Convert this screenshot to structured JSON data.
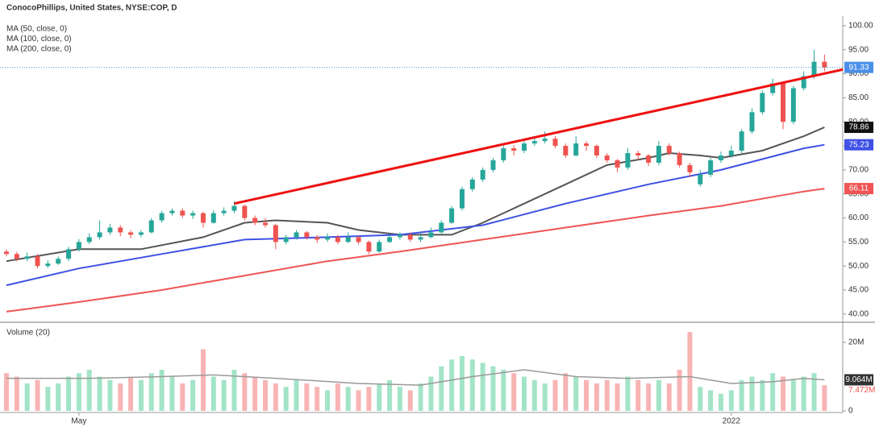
{
  "chart_data": [
    {
      "type": "candlestick",
      "title": "ConocoPhillips, United States, NYSE:COP, D",
      "open": [
        53,
        52.5,
        51.5,
        52,
        50,
        50.5,
        51.5,
        53.5,
        55,
        56,
        57,
        58,
        57,
        56.5,
        57,
        59.5,
        61,
        61.5,
        60.5,
        61,
        59,
        61,
        61.5,
        62.5,
        60,
        59,
        58.5,
        55,
        56,
        57,
        56,
        55.5,
        56,
        55,
        56,
        55,
        53,
        55,
        56,
        56.5,
        55.5,
        56,
        57,
        59,
        62,
        66,
        68,
        70,
        72,
        74.5,
        74,
        75.5,
        76,
        76.5,
        75,
        73,
        75.5,
        75,
        73,
        72,
        70.5,
        73.5,
        73,
        71.5,
        75,
        73.5,
        71,
        67,
        69,
        72,
        73,
        74,
        78,
        82,
        86,
        88,
        80,
        87,
        89.5,
        92.5
      ],
      "high": [
        53.5,
        53,
        52.8,
        52.5,
        51.2,
        52,
        54,
        55.6,
        56.8,
        59.5,
        58.8,
        58.5,
        57.5,
        57.5,
        60,
        61.5,
        62,
        62,
        61.5,
        61.3,
        61.6,
        62.2,
        63.5,
        62.8,
        60.5,
        60,
        58.8,
        56.5,
        57.5,
        57.3,
        56.5,
        56.8,
        56.5,
        57,
        56.3,
        55.3,
        55.5,
        56.5,
        57,
        57,
        56.8,
        58,
        59.5,
        62.5,
        66.5,
        68.5,
        70.5,
        72.5,
        75,
        75.2,
        76,
        76.8,
        78,
        77,
        75.5,
        77,
        76,
        75.3,
        73.5,
        72.3,
        74.5,
        74,
        73.3,
        76,
        75.5,
        73.8,
        71.5,
        70,
        72.5,
        73.8,
        75,
        78.5,
        82.8,
        86.5,
        89,
        88.3,
        87.5,
        90.5,
        95,
        94
      ],
      "low": [
        52,
        51,
        51,
        49.5,
        49.6,
        50.2,
        51,
        53,
        54.5,
        55.5,
        56.5,
        56.2,
        55.8,
        56,
        56.8,
        59,
        60.5,
        60,
        59.8,
        58,
        58.8,
        60.5,
        61,
        59.5,
        58.5,
        58,
        53.5,
        54.5,
        55.5,
        55.5,
        54.8,
        55,
        54.5,
        54.8,
        54.5,
        52.5,
        52.8,
        54.8,
        55.5,
        55,
        55,
        55.8,
        56.8,
        58.8,
        61.5,
        65.5,
        67.5,
        69.5,
        71.5,
        73,
        73.5,
        75,
        75.5,
        74.5,
        72.5,
        72.8,
        74,
        72.5,
        71.5,
        69.5,
        70,
        72,
        70.8,
        71,
        73,
        70.5,
        68.5,
        66.5,
        68.5,
        71.5,
        72.5,
        73.5,
        77.5,
        81.5,
        85.5,
        78.5,
        79.5,
        86.5,
        89,
        90.5
      ],
      "close": [
        52.5,
        51.5,
        52,
        50,
        50.5,
        51.5,
        53.5,
        55,
        56,
        57,
        58,
        57,
        56.5,
        57,
        59.5,
        61,
        61.5,
        60.5,
        61,
        59,
        61,
        61.5,
        62.5,
        60,
        59,
        58.5,
        55,
        56,
        57,
        56,
        55.5,
        56,
        55,
        56,
        55,
        53,
        55,
        56,
        56.5,
        55.5,
        56,
        57,
        59,
        62,
        66,
        68,
        70,
        72,
        74.5,
        74,
        75.5,
        76,
        76.5,
        75,
        73,
        75.5,
        75,
        73,
        72,
        70.5,
        73.5,
        73,
        71.5,
        75,
        73.5,
        71,
        69.5,
        69,
        72,
        73,
        74,
        78,
        82,
        86,
        88,
        80,
        87,
        89.5,
        92.5,
        91.33
      ],
      "up_color": "#26a69a",
      "down_color": "#ef5350",
      "last_price_line": true,
      "last_price_color": "#4a8fe7",
      "series": [
        {
          "name": "MA (50, close, 0)",
          "color": "#555555",
          "x": [
            0,
            7,
            13,
            19,
            23,
            26,
            31,
            34,
            38,
            43,
            46,
            50,
            54,
            58,
            62,
            64,
            67,
            69,
            73,
            77,
            79
          ],
          "values": [
            51,
            53.5,
            53.5,
            56,
            59,
            59.5,
            59,
            57.5,
            56.5,
            56.5,
            59,
            63,
            67,
            71,
            72.5,
            73.5,
            73,
            72.5,
            74,
            77,
            78.86
          ]
        },
        {
          "name": "MA (100, close, 0)",
          "color": "#3f51e6",
          "x": [
            0,
            7,
            15,
            23,
            31,
            38,
            46,
            54,
            62,
            69,
            77,
            79
          ],
          "values": [
            46,
            49.5,
            52.5,
            55.5,
            56,
            56.5,
            58.5,
            63,
            67,
            70,
            74.5,
            75.23
          ]
        },
        {
          "name": "MA (200, close, 0)",
          "color": "#f05454",
          "x": [
            0,
            7,
            15,
            23,
            31,
            38,
            46,
            54,
            62,
            69,
            77,
            79
          ],
          "values": [
            40.5,
            42.5,
            45,
            48,
            51,
            53,
            55.5,
            58,
            60.5,
            62.5,
            65.5,
            66.11
          ]
        }
      ],
      "trendline": {
        "color": "#ee1111",
        "x": [
          22,
          81
        ],
        "values": [
          63,
          91
        ]
      },
      "ylim": [
        38.3,
        102
      ],
      "yticks": [
        {
          "value": 40,
          "label": "40.00"
        },
        {
          "value": 45,
          "label": "45.00"
        },
        {
          "value": 50,
          "label": "50.00"
        },
        {
          "value": 55,
          "label": "55.00"
        },
        {
          "value": 60,
          "label": "60.00"
        },
        {
          "value": 65,
          "label": "65.00"
        },
        {
          "value": 70,
          "label": "70.00"
        },
        {
          "value": 75,
          "label": "75.00"
        },
        {
          "value": 80,
          "label": "80.00"
        },
        {
          "value": 85,
          "label": "85.00"
        },
        {
          "value": 90,
          "label": "90.00"
        },
        {
          "value": 95,
          "label": "95.00"
        },
        {
          "value": 100,
          "label": "100.00"
        }
      ]
    },
    {
      "type": "bar",
      "title": "Volume (20)",
      "categories": [
        null,
        null,
        null,
        null,
        null,
        null,
        null,
        "May",
        null,
        null,
        null,
        null,
        null,
        null,
        null,
        null,
        null,
        null,
        null,
        null,
        null,
        null,
        null,
        null,
        null,
        null,
        null,
        null,
        null,
        null,
        null,
        null,
        null,
        null,
        null,
        null,
        null,
        null,
        null,
        null,
        null,
        null,
        null,
        null,
        null,
        null,
        null,
        null,
        null,
        null,
        null,
        null,
        null,
        null,
        null,
        null,
        null,
        null,
        null,
        null,
        null,
        null,
        null,
        null,
        null,
        null,
        null,
        null,
        null,
        null,
        "2022",
        null,
        null,
        null,
        null,
        null,
        null,
        null,
        null,
        null
      ],
      "values": [
        11000000,
        10000000,
        8000000,
        9000000,
        7000000,
        8000000,
        10000000,
        11000000,
        12000000,
        10000000,
        9000000,
        8000000,
        10000000,
        9000000,
        11000000,
        12000000,
        10000000,
        8000000,
        9000000,
        18000000,
        10000000,
        9000000,
        12000000,
        11000000,
        10000000,
        9000000,
        8000000,
        7000000,
        9000000,
        8000000,
        7000000,
        6000000,
        8000000,
        7000000,
        6000000,
        7000000,
        8000000,
        9000000,
        7000000,
        6000000,
        8000000,
        10000000,
        13000000,
        15000000,
        16000000,
        15000000,
        14000000,
        13000000,
        12000000,
        11000000,
        10000000,
        9000000,
        8000000,
        9000000,
        11000000,
        10000000,
        9000000,
        8000000,
        9000000,
        8000000,
        10000000,
        9000000,
        8000000,
        9000000,
        8000000,
        12000000,
        23000000,
        7000000,
        6000000,
        5000000,
        6000000,
        9000000,
        10000000,
        9000000,
        11000000,
        10000000,
        9000000,
        10000000,
        11000000,
        7472000
      ],
      "value_labels": [
        null,
        null,
        null,
        null,
        null,
        null,
        null,
        null,
        null,
        null,
        null,
        null,
        null,
        null,
        null,
        null,
        null,
        null,
        null,
        null,
        null,
        null,
        null,
        null,
        null,
        null,
        null,
        null,
        null,
        null,
        null,
        null,
        null,
        null,
        null,
        null,
        null,
        null,
        null,
        null,
        null,
        null,
        null,
        null,
        null,
        null,
        null,
        null,
        null,
        null,
        null,
        null,
        null,
        null,
        null,
        null,
        null,
        null,
        null,
        null,
        null,
        null,
        null,
        null,
        null,
        null,
        null,
        null,
        null,
        null,
        null,
        null,
        null,
        null,
        null,
        null,
        null,
        null,
        null,
        "7.472M"
      ],
      "up_color": "#a3e4c7",
      "down_color": "#f8b4b4",
      "ma": {
        "color": "#9a9a9a",
        "x": [
          0,
          8,
          15,
          20,
          26,
          34,
          40,
          45,
          50,
          55,
          60,
          66,
          70,
          74,
          77,
          79
        ],
        "values": [
          9500000,
          9500000,
          10000000,
          10500000,
          9500000,
          8000000,
          7500000,
          10000000,
          12000000,
          10000000,
          9500000,
          10000000,
          8000000,
          8500000,
          9500000,
          9064000
        ],
        "value_labels": [
          null,
          null,
          null,
          null,
          null,
          null,
          null,
          null,
          null,
          null,
          null,
          null,
          null,
          null,
          null,
          "9.064M"
        ]
      },
      "ylim": [
        0,
        24700000
      ],
      "yticks": [
        0,
        {
          "value": 20000000,
          "label": "20M"
        }
      ]
    }
  ]
}
